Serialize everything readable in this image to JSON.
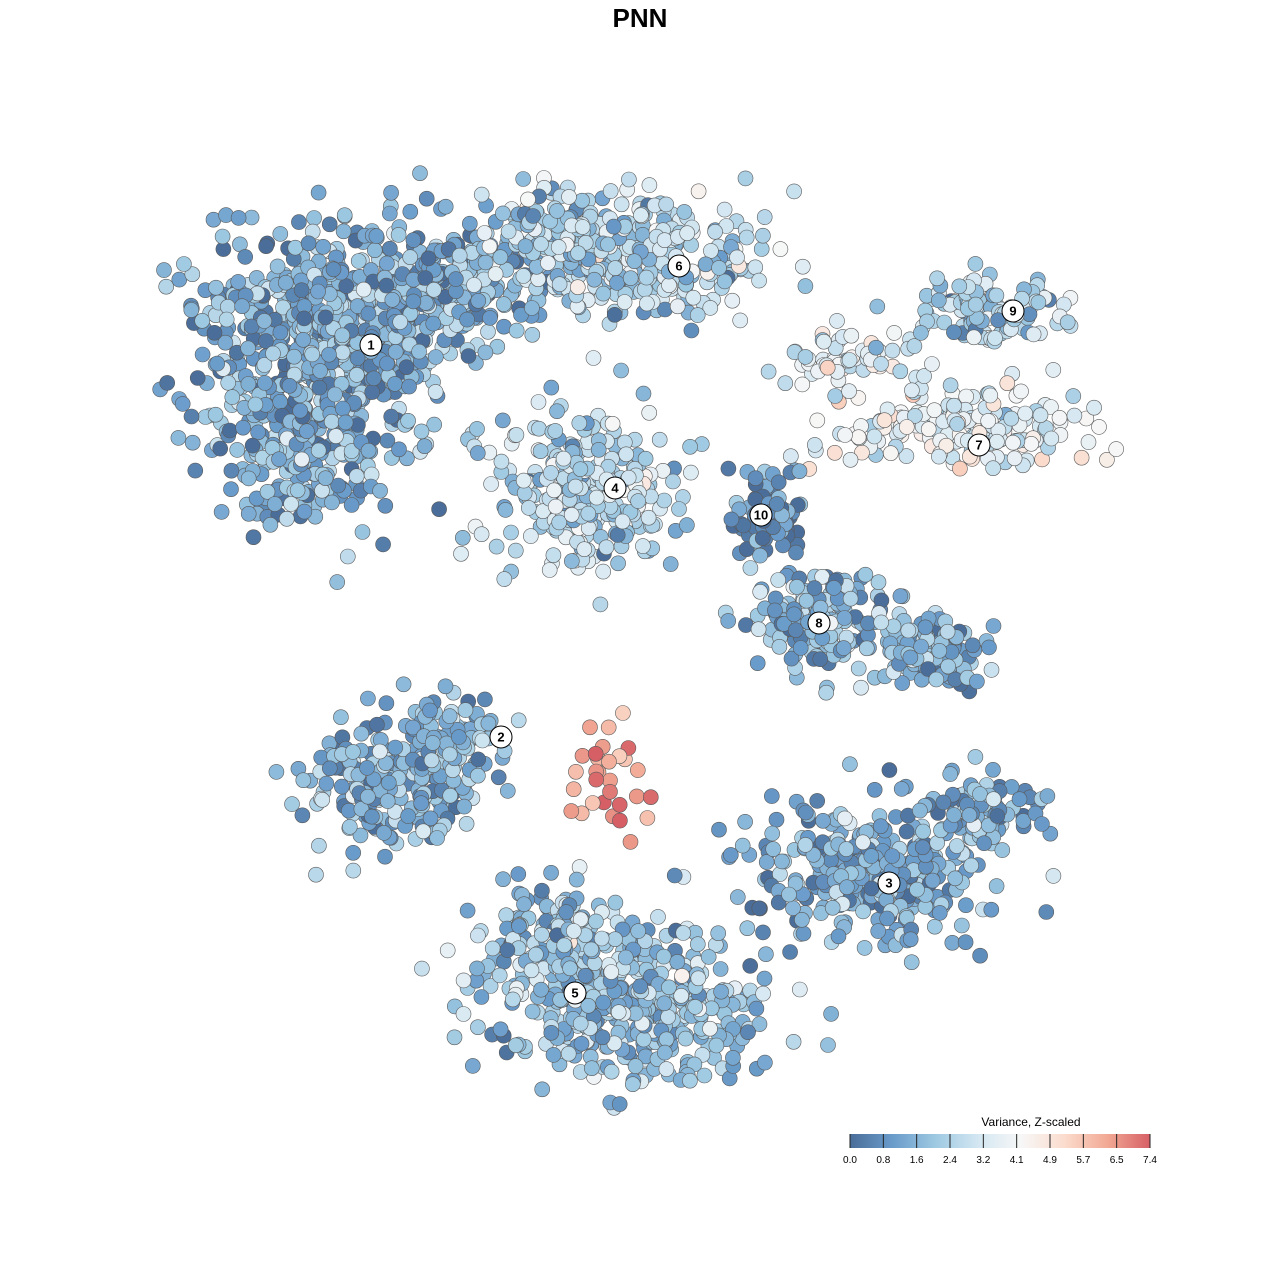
{
  "chart_data": {
    "type": "scatter",
    "title": "PNN",
    "xlabel": "",
    "ylabel": "",
    "axes_visible": false,
    "grid": false,
    "legend_placement": "bottom-right",
    "color_scale": {
      "title": "Variance, Z-scaled",
      "min": 0.0,
      "max": 7.4,
      "ticks": [
        "0.0",
        "0.8",
        "1.6",
        "2.4",
        "3.2",
        "4.1",
        "4.9",
        "5.7",
        "6.5",
        "7.4"
      ],
      "colors": [
        "#4a6d99",
        "#6a9ccb",
        "#9ec9e2",
        "#d4e7f2",
        "#f7f7f7",
        "#fbdccd",
        "#f2a994",
        "#d65f66"
      ]
    },
    "clusters": [
      {
        "label": "1",
        "mean_value": 1.5
      },
      {
        "label": "2",
        "mean_value": 1.6
      },
      {
        "label": "3",
        "mean_value": 1.5
      },
      {
        "label": "4",
        "mean_value": 2.6
      },
      {
        "label": "5",
        "mean_value": 2.0
      },
      {
        "label": "6",
        "mean_value": 2.5
      },
      {
        "label": "7",
        "mean_value": 3.6
      },
      {
        "label": "8",
        "mean_value": 1.6
      },
      {
        "label": "9",
        "mean_value": 2.4
      },
      {
        "label": "10",
        "mean_value": 0.5
      }
    ]
  }
}
